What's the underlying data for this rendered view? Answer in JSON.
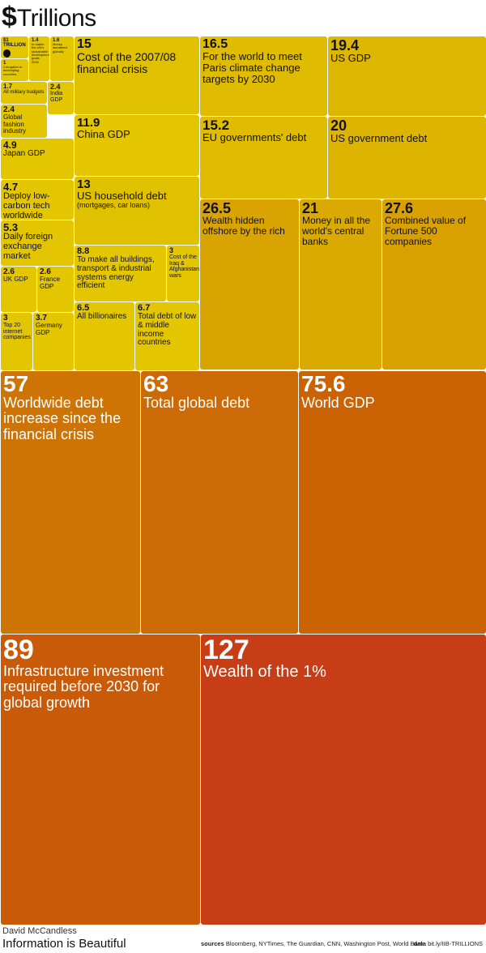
{
  "title": {
    "symbol": "$",
    "text": "Trillions"
  },
  "chart_data": {
    "type": "treemap",
    "unit": "$ Trillions",
    "items": [
      {
        "value": "$1 TRILLION",
        "label": "",
        "icon": "apple-icon",
        "color": "#e3c600"
      },
      {
        "value": "1.4",
        "label": "to match the UN's sustainable development goals 2030",
        "color": "#e3c600"
      },
      {
        "value": "1.6",
        "label": "Money laundered globally",
        "color": "#e3c600"
      },
      {
        "value": "1",
        "label": "Corruption in developing countries",
        "color": "#e3c600"
      },
      {
        "value": "1.7",
        "label": "All military budgets",
        "color": "#e3c600"
      },
      {
        "value": "2.4",
        "label": "India GDP",
        "color": "#e3c600"
      },
      {
        "value": "2.4",
        "label": "Global fashion industry",
        "color": "#e3c600"
      },
      {
        "value": "4.9",
        "label": "Japan GDP",
        "color": "#e3c600"
      },
      {
        "value": "4.7",
        "label": "Deploy low-carbon tech worldwide",
        "color": "#e3c600"
      },
      {
        "value": "5.3",
        "label": "Daily foreign exchange market",
        "color": "#e3c600"
      },
      {
        "value": "2.6",
        "label": "UK GDP",
        "color": "#e3c600"
      },
      {
        "value": "2.6",
        "label": "France GDP",
        "color": "#e3c600"
      },
      {
        "value": "3",
        "label": "Top 20 internet companies",
        "color": "#e3c600"
      },
      {
        "value": "3.7",
        "label": "Germany GDP",
        "color": "#e3c600"
      },
      {
        "value": "15",
        "label": "Cost of the 2007/08 financial crisis",
        "color": "#e0c100"
      },
      {
        "value": "11.9",
        "label": "China GDP",
        "color": "#e3c600"
      },
      {
        "value": "13",
        "label": "US household debt",
        "sub": "(mortgages, car loans)",
        "color": "#e0c100"
      },
      {
        "value": "8.8",
        "label": "To make all buildings, transport & industrial systems energy efficient",
        "color": "#e3c600"
      },
      {
        "value": "3",
        "label": "Cost of the Iraq & Afghanistan wars",
        "color": "#e3c600"
      },
      {
        "value": "6.5",
        "label": "All billionaires",
        "color": "#e3c600"
      },
      {
        "value": "6.7",
        "label": "Total debt of low & middle income countries",
        "color": "#e3c600"
      },
      {
        "value": "16.5",
        "label": "For the world to meet Paris climate change targets by 2030",
        "color": "#dfbc00"
      },
      {
        "value": "19.4",
        "label": "US GDP",
        "color": "#ddb600"
      },
      {
        "value": "15.2",
        "label": "EU governments' debt",
        "color": "#dfbc00"
      },
      {
        "value": "20",
        "label": "US government debt",
        "color": "#ddb400"
      },
      {
        "value": "26.5",
        "label": "Wealth hidden offshore by the rich",
        "color": "#d9a300"
      },
      {
        "value": "21",
        "label": "Money in all the world's central banks",
        "color": "#dbaa00"
      },
      {
        "value": "27.6",
        "label": "Combined value of Fortune 500 companies",
        "color": "#d9a100"
      },
      {
        "value": "57",
        "label": "Worldwide debt increase since the financial crisis",
        "color": "#ce7404"
      },
      {
        "value": "63",
        "label": "Total global debt",
        "color": "#cc6b05"
      },
      {
        "value": "75.6",
        "label": "World GDP",
        "color": "#cb6305"
      },
      {
        "value": "89",
        "label": "Infrastructure investment required before 2030 for global growth",
        "color": "#c95a08"
      },
      {
        "value": "127",
        "label": "Wealth of the 1%",
        "color": "#c73d16"
      }
    ]
  },
  "footer": {
    "author": "David McCandless",
    "brand": "Information is Beautiful",
    "sources_label": "sources",
    "sources_text": "Bloomberg, NYTimes, The Guardian, CNN, Washington Post, World Bank",
    "data_label": "data",
    "data_text": "bit.ly/IIB-TRILLIONS"
  }
}
